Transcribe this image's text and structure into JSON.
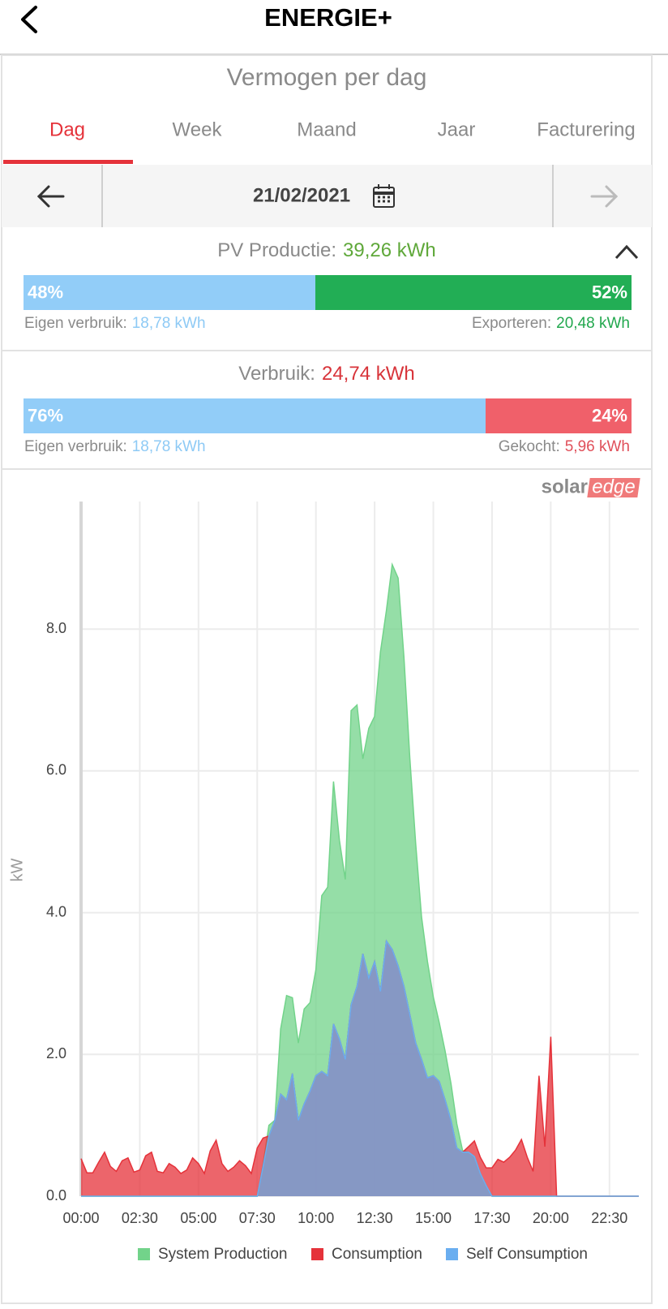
{
  "header": {
    "title": "ENERGIE+"
  },
  "subtitle": "Vermogen per dag",
  "tabs": [
    "Dag",
    "Week",
    "Maand",
    "Jaar",
    "Facturering"
  ],
  "date": "21/02/2021",
  "pv": {
    "label": "PV Productie:",
    "total": "39,26 kWh",
    "shares": [
      48,
      52
    ],
    "share_labels": [
      "48%",
      "52%"
    ],
    "left_caption": "Eigen verbruik:",
    "left_value": "18,78 kWh",
    "right_caption": "Exporteren:",
    "right_value": "20,48 kWh"
  },
  "consumption": {
    "label": "Verbruik:",
    "total": "24,74 kWh",
    "shares": [
      76,
      24
    ],
    "share_labels": [
      "76%",
      "24%"
    ],
    "left_caption": "Eigen verbruik:",
    "left_value": "18,78 kWh",
    "right_caption": "Gekocht:",
    "right_value": "5,96 kWh"
  },
  "logo": [
    "solar",
    "edge"
  ],
  "chart_data": {
    "type": "area",
    "y_label": "kW",
    "x": [
      0,
      0.25,
      0.5,
      0.75,
      1,
      1.25,
      1.5,
      1.75,
      2,
      2.25,
      2.5,
      2.75,
      3,
      3.25,
      3.5,
      3.75,
      4,
      4.25,
      4.5,
      4.75,
      5,
      5.25,
      5.5,
      5.75,
      6,
      6.25,
      6.5,
      6.75,
      7,
      7.25,
      7.5,
      7.75,
      8,
      8.25,
      8.5,
      8.75,
      9,
      9.25,
      9.5,
      9.75,
      10,
      10.25,
      10.5,
      10.75,
      11,
      11.25,
      11.5,
      11.75,
      12,
      12.25,
      12.5,
      12.75,
      13,
      13.25,
      13.5,
      13.75,
      14,
      14.25,
      14.5,
      14.75,
      15,
      15.25,
      15.5,
      15.75,
      16,
      16.25,
      16.5,
      16.75,
      17,
      17.25,
      17.5,
      17.75,
      18,
      18.25,
      18.5,
      18.75,
      19,
      19.25,
      19.5,
      19.75,
      20,
      20.25,
      20.5,
      20.75,
      21,
      21.25,
      21.5,
      21.75,
      22,
      22.25,
      22.5,
      22.75,
      23,
      23.25,
      23.5,
      23.75
    ],
    "xlim": [
      0,
      23.75
    ],
    "xticks": [
      {
        "value": 0,
        "label": "00:00"
      },
      {
        "value": 2.5,
        "label": "02:30"
      },
      {
        "value": 5,
        "label": "05:00"
      },
      {
        "value": 7.5,
        "label": "07:30"
      },
      {
        "value": 10,
        "label": "10:00"
      },
      {
        "value": 12.5,
        "label": "12:30"
      },
      {
        "value": 15,
        "label": "15:00"
      },
      {
        "value": 17.5,
        "label": "17:30"
      },
      {
        "value": 20,
        "label": "20:00"
      },
      {
        "value": 22.5,
        "label": "22:30"
      }
    ],
    "ylim": [
      0,
      9.8
    ],
    "yticks": [
      {
        "value": 0,
        "label": "0.0"
      },
      {
        "value": 2,
        "label": "2.0"
      },
      {
        "value": 4,
        "label": "4.0"
      },
      {
        "value": 6,
        "label": "6.0"
      },
      {
        "value": 8,
        "label": "8.0"
      }
    ],
    "grid": true,
    "legend": "bottom",
    "series": [
      {
        "name": "System Production",
        "color": "#72d38a",
        "values": [
          0,
          0,
          0,
          0,
          0,
          0,
          0,
          0,
          0,
          0,
          0,
          0,
          0,
          0,
          0,
          0,
          0,
          0,
          0,
          0,
          0,
          0,
          0,
          0,
          0,
          0,
          0,
          0,
          0,
          0,
          0,
          0.45,
          1.0,
          1.07,
          2.36,
          2.83,
          2.8,
          2.16,
          2.64,
          2.73,
          3.2,
          4.24,
          4.36,
          5.85,
          5.02,
          4.47,
          6.85,
          6.93,
          6.17,
          6.6,
          6.77,
          7.68,
          8.26,
          8.91,
          8.72,
          7.6,
          6.17,
          4.97,
          3.94,
          3.31,
          2.81,
          2.45,
          2.05,
          1.59,
          1.02,
          0.64,
          0.62,
          0.56,
          0.32,
          0.15,
          0,
          0,
          0,
          0,
          0,
          0,
          0,
          0,
          0,
          0,
          0,
          0,
          0,
          0,
          0,
          0,
          0,
          0,
          0,
          0,
          0,
          0,
          0,
          0,
          0,
          0
        ]
      },
      {
        "name": "Consumption",
        "color": "#e5323a",
        "values": [
          0.53,
          0.33,
          0.33,
          0.48,
          0.62,
          0.42,
          0.35,
          0.5,
          0.54,
          0.34,
          0.37,
          0.57,
          0.62,
          0.35,
          0.33,
          0.46,
          0.41,
          0.32,
          0.37,
          0.54,
          0.46,
          0.32,
          0.64,
          0.79,
          0.46,
          0.35,
          0.41,
          0.5,
          0.43,
          0.32,
          0.68,
          0.82,
          0.85,
          1.07,
          1.44,
          1.36,
          1.73,
          1.07,
          1.3,
          1.48,
          1.7,
          1.76,
          1.7,
          2.43,
          2.22,
          1.93,
          2.7,
          2.96,
          3.42,
          3.08,
          3.31,
          2.89,
          3.6,
          3.48,
          3.25,
          2.96,
          2.56,
          2.16,
          1.93,
          1.67,
          1.7,
          1.62,
          1.36,
          1.07,
          0.68,
          0.62,
          0.7,
          0.78,
          0.55,
          0.4,
          0.4,
          0.52,
          0.48,
          0.55,
          0.65,
          0.8,
          0.55,
          0.35,
          1.7,
          0.7,
          2.25,
          0,
          0,
          0,
          0,
          0,
          0,
          0,
          0,
          0,
          0,
          0,
          0,
          0,
          0,
          0
        ]
      },
      {
        "name": "Self Consumption",
        "color": "#6aaef0",
        "values": [
          0,
          0,
          0,
          0,
          0,
          0,
          0,
          0,
          0,
          0,
          0,
          0,
          0,
          0,
          0,
          0,
          0,
          0,
          0,
          0,
          0,
          0,
          0,
          0,
          0,
          0,
          0,
          0,
          0,
          0,
          0,
          0.42,
          0.85,
          1.07,
          1.44,
          1.36,
          1.73,
          1.07,
          1.3,
          1.48,
          1.7,
          1.76,
          1.7,
          2.43,
          2.22,
          1.93,
          2.7,
          2.96,
          3.42,
          3.08,
          3.31,
          2.89,
          3.6,
          3.48,
          3.25,
          2.96,
          2.56,
          2.16,
          1.93,
          1.67,
          1.7,
          1.62,
          1.36,
          1.07,
          0.68,
          0.62,
          0.62,
          0.56,
          0.32,
          0.15,
          0,
          0,
          0,
          0,
          0,
          0,
          0,
          0,
          0,
          0,
          0,
          0,
          0,
          0,
          0,
          0,
          0,
          0,
          0,
          0,
          0,
          0,
          0,
          0,
          0,
          0
        ]
      }
    ]
  }
}
